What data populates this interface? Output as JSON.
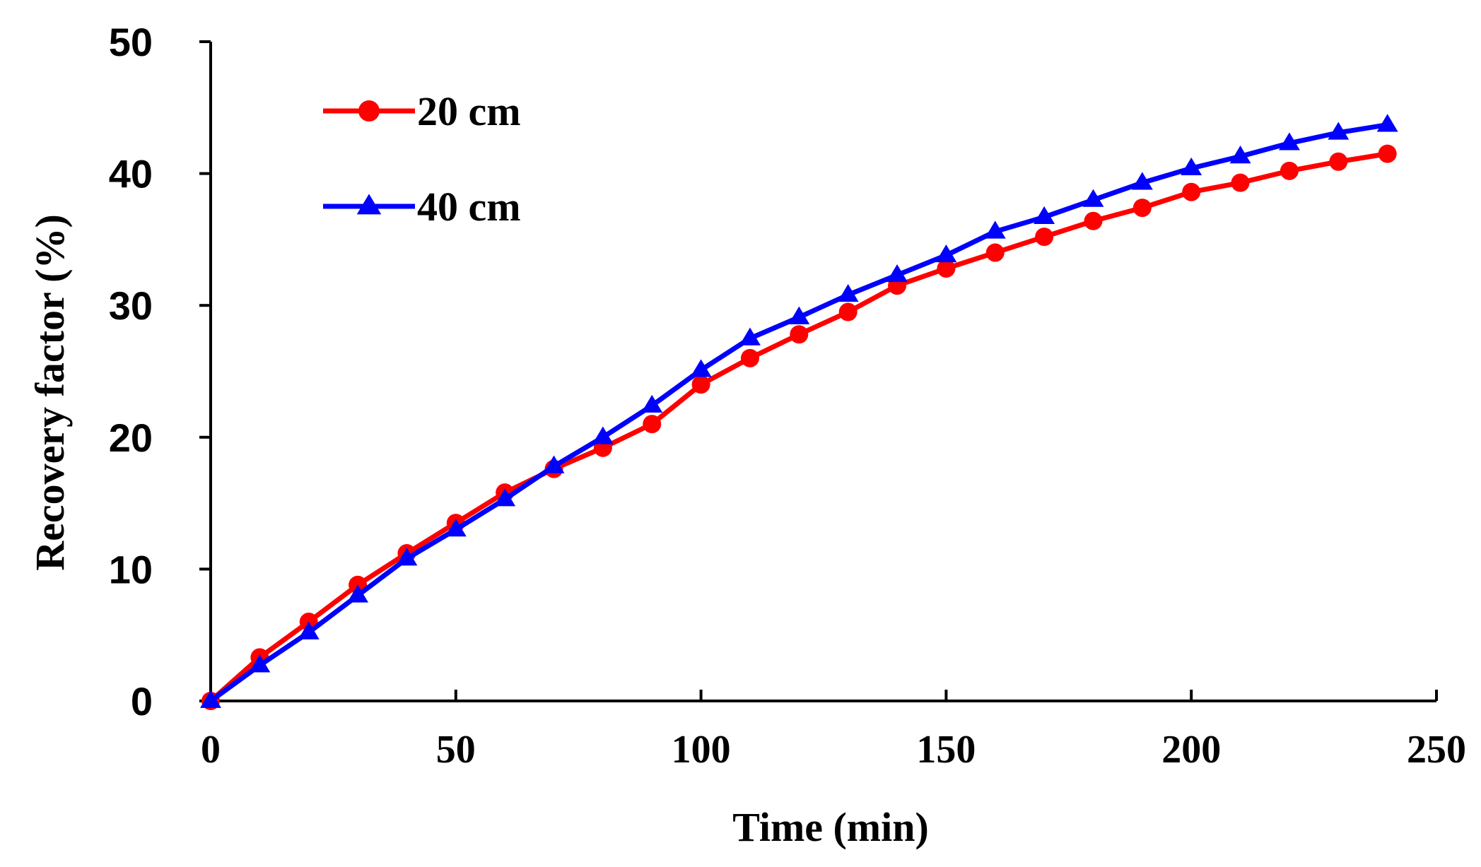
{
  "chart_data": {
    "type": "line",
    "title": "",
    "xlabel": "Time (min)",
    "ylabel": "Recovery factor (%)",
    "xlim": [
      0,
      250
    ],
    "ylim": [
      0,
      50
    ],
    "xticks": [
      0,
      50,
      100,
      150,
      200,
      250
    ],
    "yticks": [
      0,
      10,
      20,
      30,
      40,
      50
    ],
    "grid": false,
    "legend_position": "top-left",
    "x": [
      0,
      10,
      20,
      30,
      40,
      50,
      60,
      70,
      80,
      90,
      100,
      110,
      120,
      130,
      140,
      150,
      160,
      170,
      180,
      190,
      200,
      210,
      220,
      230,
      240
    ],
    "series": [
      {
        "name": "20 cm",
        "color": "#ff0000",
        "marker": "circle",
        "values": [
          0,
          3.3,
          6.0,
          8.8,
          11.2,
          13.5,
          15.8,
          17.6,
          19.2,
          21.0,
          24.0,
          26.0,
          27.8,
          29.5,
          31.5,
          32.8,
          34.0,
          35.2,
          36.4,
          37.4,
          38.6,
          39.3,
          40.2,
          40.9,
          41.5
        ]
      },
      {
        "name": "40 cm",
        "color": "#0000ff",
        "marker": "triangle",
        "values": [
          0,
          2.7,
          5.2,
          8.0,
          10.8,
          13.0,
          15.3,
          17.8,
          20.0,
          22.4,
          25.1,
          27.5,
          29.1,
          30.8,
          32.3,
          33.8,
          35.6,
          36.7,
          38.0,
          39.3,
          40.4,
          41.3,
          42.3,
          43.1,
          43.7
        ]
      }
    ]
  }
}
